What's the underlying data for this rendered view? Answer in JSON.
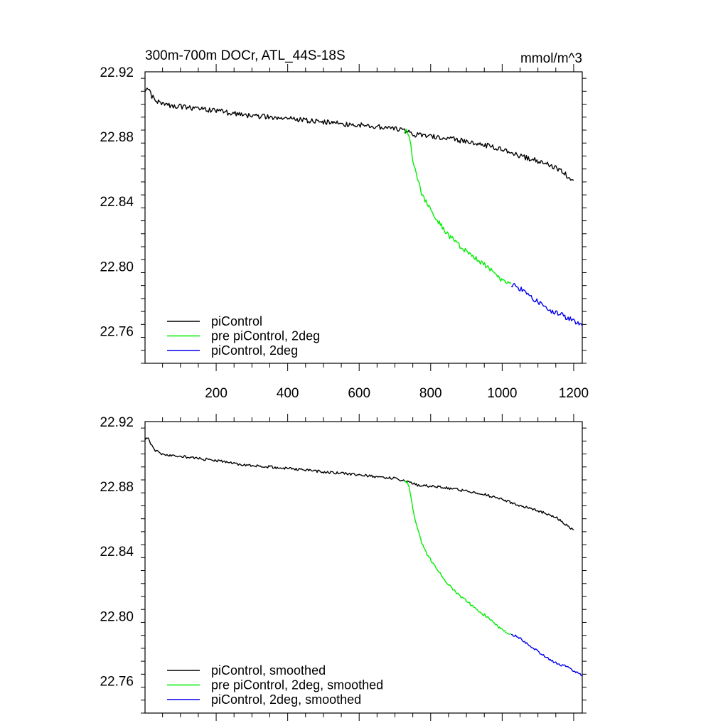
{
  "figure": {
    "title_left": "300m-700m DOCr, ATL_44S-18S",
    "title_right": "mmol/m^3"
  },
  "chart_data": [
    {
      "type": "line",
      "title": "300m-700m DOCr, ATL_44S-18S",
      "units": "mmol/m^3",
      "xlim": [
        1,
        1224
      ],
      "ylim": [
        22.74,
        22.92
      ],
      "xticks": [
        200,
        400,
        600,
        800,
        1000,
        1200
      ],
      "xtick_labels": [
        "200",
        "400",
        "600",
        "800",
        "1000",
        "1200"
      ],
      "yticks": [
        22.76,
        22.8,
        22.84,
        22.88,
        22.92
      ],
      "ytick_labels": [
        "22.76",
        "22.80",
        "22.84",
        "22.88",
        "22.92"
      ],
      "legend_position": "bottom-left",
      "grid": false,
      "series": [
        {
          "name": "piControl",
          "color": "#000000",
          "x": [
            1,
            10,
            20,
            30,
            50,
            80,
            120,
            160,
            200,
            250,
            300,
            350,
            400,
            450,
            500,
            550,
            600,
            650,
            700,
            730,
            760,
            800,
            850,
            900,
            950,
            1000,
            1050,
            1100,
            1150,
            1180,
            1200
          ],
          "y": [
            22.908,
            22.91,
            22.905,
            22.902,
            22.9,
            22.899,
            22.898,
            22.897,
            22.896,
            22.894,
            22.893,
            22.892,
            22.891,
            22.89,
            22.889,
            22.888,
            22.887,
            22.886,
            22.885,
            22.883,
            22.881,
            22.88,
            22.879,
            22.877,
            22.875,
            22.872,
            22.868,
            22.865,
            22.861,
            22.856,
            22.853
          ]
        },
        {
          "name": "pre piControl, 2deg",
          "color": "#00ee00",
          "x": [
            725,
            735,
            740,
            745,
            750,
            760,
            775,
            790,
            810,
            830,
            850,
            870,
            900,
            930,
            960,
            990,
            1010,
            1020,
            1025
          ],
          "y": [
            22.883,
            22.884,
            22.88,
            22.874,
            22.866,
            22.856,
            22.845,
            22.838,
            22.831,
            22.825,
            22.819,
            22.815,
            22.809,
            22.804,
            22.799,
            22.793,
            22.79,
            22.789,
            22.789
          ]
        },
        {
          "name": "piControl, 2deg",
          "color": "#0000ee",
          "x": [
            1025,
            1050,
            1075,
            1100,
            1125,
            1150,
            1175,
            1200,
            1224
          ],
          "y": [
            22.789,
            22.786,
            22.782,
            22.778,
            22.774,
            22.771,
            22.769,
            22.766,
            22.763
          ]
        }
      ]
    },
    {
      "type": "line",
      "xlim": [
        1,
        1224
      ],
      "ylim": [
        22.74,
        22.92
      ],
      "xticks": [
        200,
        400,
        600,
        800,
        1000,
        1200
      ],
      "yticks": [
        22.76,
        22.8,
        22.84,
        22.88,
        22.92
      ],
      "ytick_labels": [
        "22.76",
        "22.80",
        "22.84",
        "22.88",
        "22.92"
      ],
      "legend_position": "bottom-left",
      "grid": false,
      "series": [
        {
          "name": "piControl, smoothed",
          "color": "#000000",
          "x": [
            1,
            10,
            20,
            30,
            50,
            80,
            120,
            160,
            200,
            250,
            300,
            350,
            400,
            450,
            500,
            550,
            600,
            650,
            700,
            730,
            760,
            800,
            850,
            900,
            950,
            1000,
            1050,
            1100,
            1150,
            1180,
            1200
          ],
          "y": [
            22.909,
            22.91,
            22.905,
            22.902,
            22.9,
            22.899,
            22.898,
            22.897,
            22.896,
            22.894,
            22.893,
            22.892,
            22.891,
            22.89,
            22.889,
            22.888,
            22.887,
            22.886,
            22.885,
            22.883,
            22.881,
            22.88,
            22.879,
            22.877,
            22.875,
            22.872,
            22.868,
            22.865,
            22.861,
            22.856,
            22.853
          ]
        },
        {
          "name": "pre piControl, 2deg, smoothed",
          "color": "#00ee00",
          "x": [
            725,
            735,
            740,
            745,
            750,
            760,
            775,
            790,
            810,
            830,
            850,
            870,
            900,
            930,
            960,
            990,
            1010,
            1020,
            1025
          ],
          "y": [
            22.883,
            22.883,
            22.879,
            22.874,
            22.866,
            22.856,
            22.845,
            22.838,
            22.831,
            22.825,
            22.819,
            22.815,
            22.809,
            22.804,
            22.799,
            22.793,
            22.79,
            22.789,
            22.789
          ]
        },
        {
          "name": "piControl, 2deg, smoothed",
          "color": "#0000ee",
          "x": [
            1025,
            1050,
            1075,
            1100,
            1125,
            1150,
            1175,
            1200,
            1224
          ],
          "y": [
            22.789,
            22.786,
            22.782,
            22.778,
            22.774,
            22.771,
            22.769,
            22.766,
            22.763
          ]
        }
      ]
    }
  ]
}
